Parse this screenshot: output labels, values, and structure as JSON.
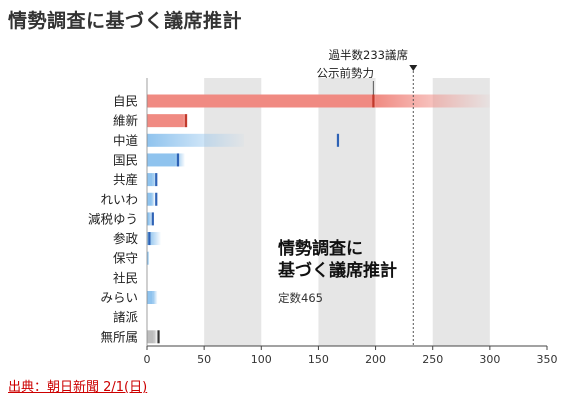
{
  "page": {
    "title": "情勢調査に基づく議席推計",
    "source": "出典：朝日新聞 2/1(日)"
  },
  "chart_data": {
    "type": "bar",
    "orientation": "horizontal",
    "title_lines": [
      "情勢調査に",
      "基づく議席推計"
    ],
    "subtitle": "定数465",
    "xlim": [
      0,
      350
    ],
    "xticks": [
      0,
      50,
      100,
      150,
      200,
      250,
      300,
      350
    ],
    "shaded_bands": [
      [
        50,
        100
      ],
      [
        150,
        200
      ],
      [
        250,
        300
      ]
    ],
    "majority": {
      "label": "過半数233議席",
      "value": 233
    },
    "marker_legend": "公示前勢力",
    "categories": [
      "自民",
      "維新",
      "中道",
      "国民",
      "共産",
      "れいわ",
      "減税ゆう",
      "参政",
      "保守",
      "社民",
      "みらい",
      "諸派",
      "無所属"
    ],
    "series": [
      {
        "low": [
          200,
          32,
          0,
          25,
          5,
          4,
          2,
          2,
          1,
          0,
          5,
          0,
          6
        ],
        "high": [
          300,
          36,
          85,
          33,
          9,
          7,
          5,
          12,
          2,
          0,
          9,
          0,
          9
        ],
        "pre_election": [
          198,
          34,
          167,
          27,
          8,
          8,
          5,
          2,
          0,
          0,
          0,
          0,
          10
        ]
      }
    ],
    "colors": {
      "ruling": "#f08a82",
      "marker_ruling": "#c0392b",
      "opposition": "#8fc3ee",
      "marker_opposition": "#2e62b5",
      "independent": "#bdbdbd",
      "marker_independent": "#333333",
      "band": "#e6e6e6"
    },
    "bar_color_groups": [
      "ruling",
      "ruling",
      "opposition",
      "opposition",
      "opposition",
      "opposition",
      "opposition",
      "opposition",
      "opposition",
      "opposition",
      "opposition",
      "opposition",
      "independent"
    ]
  }
}
